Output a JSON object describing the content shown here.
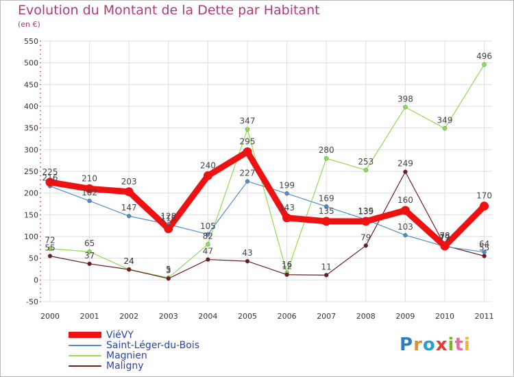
{
  "header": {
    "title": "Evolution du Montant de la Dette par Habitant",
    "subtitle": "(en €)"
  },
  "logo_text": "Proxiti",
  "colors": {
    "title": "#b03a78",
    "legend_text": "#2d44a8",
    "axis_text": "#333333",
    "grid": "#dddddd"
  },
  "chart_data": {
    "type": "line",
    "title": "Evolution du Montant de la Dette par Habitant",
    "subtitle": "(en €)",
    "xlabel": "",
    "ylabel": "",
    "x": [
      "2000",
      "2001",
      "2002",
      "2003",
      "2004",
      "2005",
      "2006",
      "2007",
      "2008",
      "2009",
      "2010",
      "2011"
    ],
    "ylim": [
      -50,
      550
    ],
    "yticks": [
      -50,
      0,
      50,
      100,
      150,
      200,
      250,
      300,
      350,
      400,
      450,
      500,
      550
    ],
    "grid": true,
    "legend_position": "bottom-left",
    "series": [
      {
        "name": "ViéVY",
        "color": "#ee1111",
        "values": [
          225,
          210,
          203,
          118,
          240,
          295,
          143,
          135,
          135,
          160,
          78,
          170
        ]
      },
      {
        "name": "Saint-Léger-du-Bois",
        "color": "#4f8dc9",
        "values": [
          216,
          182,
          147,
          128,
          105,
          227,
          199,
          169,
          139,
          103,
          77,
          64
        ]
      },
      {
        "name": "Magnien",
        "color": "#8fdc50",
        "values": [
          72,
          65,
          24,
          5,
          82,
          347,
          16,
          280,
          253,
          398,
          349,
          496
        ]
      },
      {
        "name": "Maligny",
        "color": "#6e1d22",
        "values": [
          55,
          37,
          24,
          3,
          47,
          43,
          12,
          11,
          79,
          249,
          79,
          55
        ]
      }
    ]
  }
}
